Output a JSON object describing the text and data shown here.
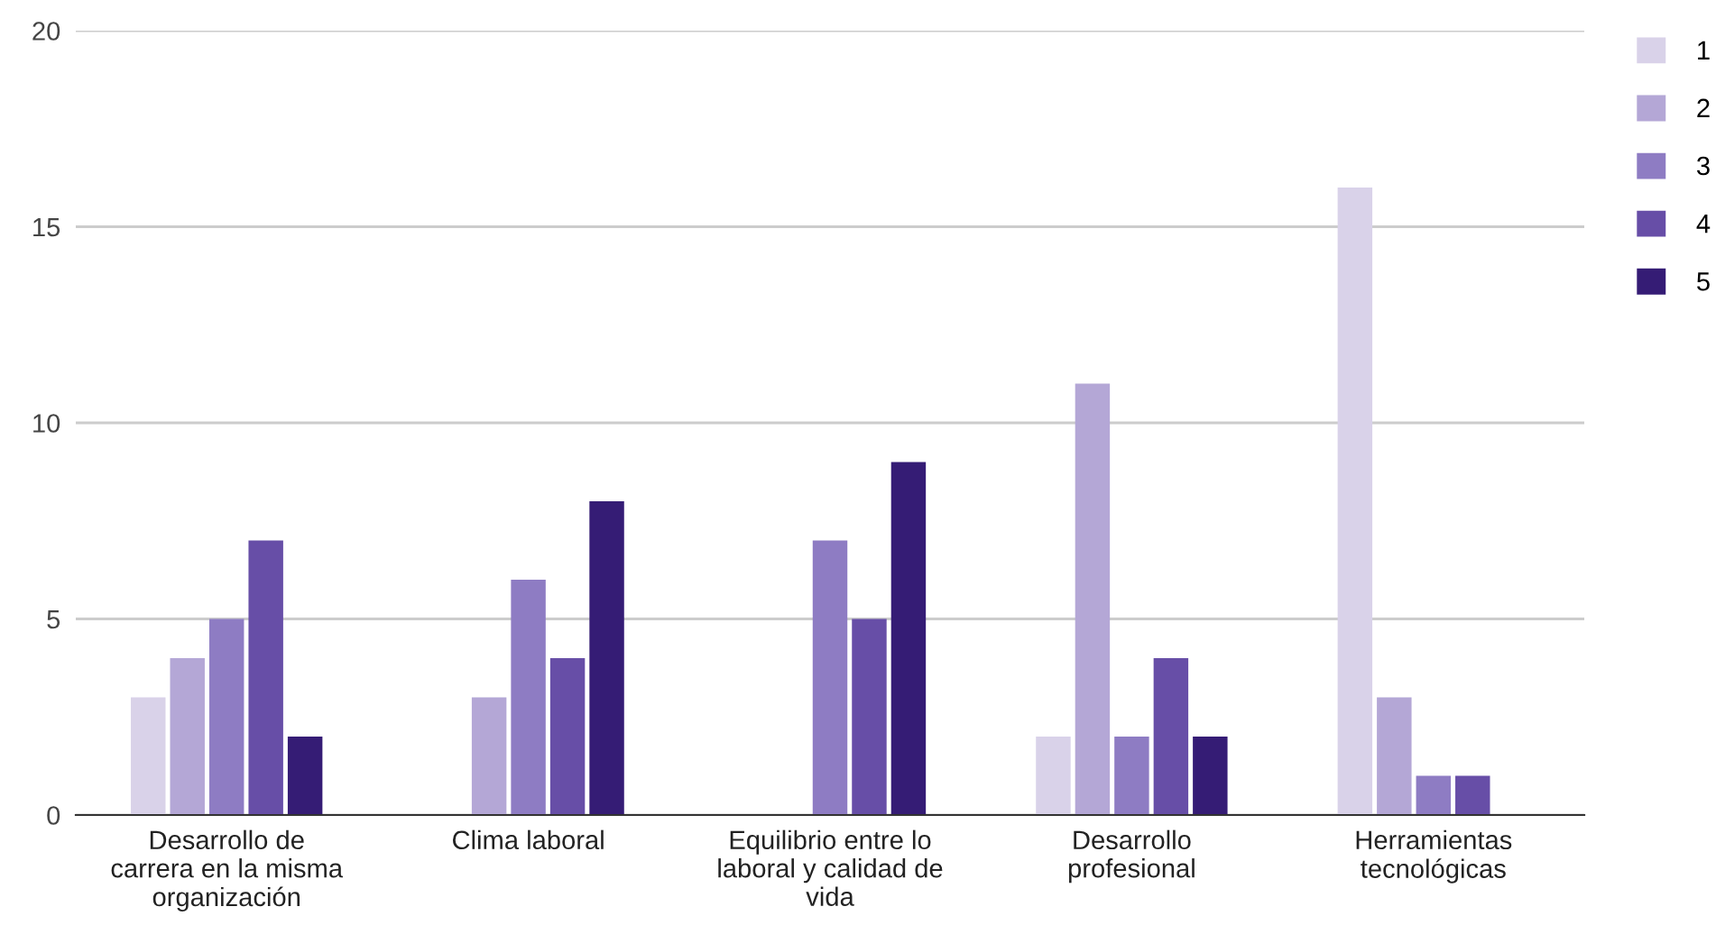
{
  "chart_data": {
    "type": "bar",
    "categories": [
      "Desarrollo de carrera en la misma organización",
      "Clima laboral",
      "Equilibrio entre lo laboral y calidad de vida",
      "Desarrollo profesional",
      "Herramientas tecnológicas"
    ],
    "series": [
      {
        "name": "1",
        "color": "#d9d2e9",
        "values": [
          3,
          0,
          0,
          2,
          16
        ]
      },
      {
        "name": "2",
        "color": "#b4a7d6",
        "values": [
          4,
          3,
          0,
          11,
          3
        ]
      },
      {
        "name": "3",
        "color": "#8e7cc3",
        "values": [
          5,
          6,
          7,
          2,
          1
        ]
      },
      {
        "name": "4",
        "color": "#674ea7",
        "values": [
          7,
          4,
          5,
          4,
          1
        ]
      },
      {
        "name": "5",
        "color": "#351c75",
        "values": [
          2,
          8,
          9,
          2,
          0
        ]
      }
    ],
    "ylim": [
      0,
      20
    ],
    "yticks": [
      0,
      5,
      10,
      15,
      20
    ],
    "grid": "y",
    "legend": "top right"
  }
}
